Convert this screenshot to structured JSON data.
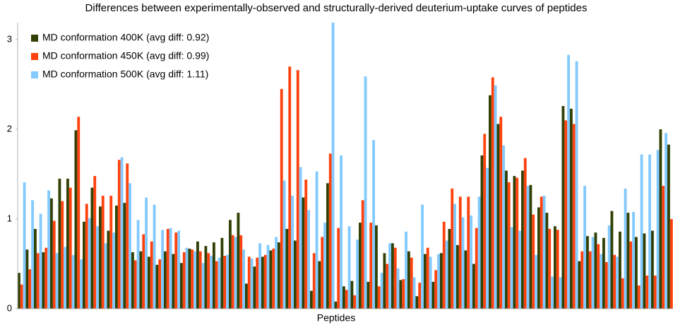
{
  "chart_data": {
    "type": "grouped-bar",
    "title": "Differences between experimentally-observed and structurally-derived deuterium-uptake curves of peptides",
    "x_label": "Peptides",
    "ylim": [
      0,
      3.19
    ],
    "yticks": [
      0,
      1,
      2,
      3
    ],
    "grid": false,
    "legend": "top-left",
    "series": [
      {
        "name": "MD conformation 400K (avg diff: 0.92)",
        "color": "#314004",
        "values": [
          0.4,
          0.66,
          0.89,
          0.63,
          1.23,
          1.45,
          1.45,
          1.99,
          0.97,
          1.35,
          1.14,
          0.87,
          1.15,
          1.18,
          0.63,
          0.64,
          0.58,
          0.49,
          0.64,
          0.61,
          0.51,
          0.67,
          0.75,
          0.7,
          0.74,
          0.79,
          0.99,
          1.07,
          0.28,
          0.47,
          0.58,
          0.65,
          0.74,
          0.89,
          0.76,
          1.24,
          0.2,
          0.53,
          1.4,
          0.08,
          0.25,
          0.31,
          0.96,
          0.3,
          0.93,
          0.62,
          0.73,
          0.32,
          0.64,
          0.14,
          0.61,
          0.3,
          0.62,
          0.89,
          0.71,
          0.65,
          0.5,
          1.71,
          2.38,
          2.06,
          1.54,
          1.48,
          1.54,
          1.38,
          1.13,
          1.07,
          0.92,
          2.26,
          2.23,
          0.53,
          0.81,
          0.85,
          0.79,
          1.09,
          0.86,
          1.07,
          0.8,
          0.84,
          0.87,
          2.0,
          1.83
        ]
      },
      {
        "name": "MD conformation 450K (avg diff: 0.99)",
        "color": "#ff420e",
        "values": [
          0.27,
          0.44,
          0.62,
          0.68,
          0.98,
          1.2,
          1.35,
          2.14,
          1.17,
          1.48,
          1.26,
          1.26,
          1.66,
          1.62,
          0.54,
          0.83,
          0.75,
          0.55,
          0.89,
          0.85,
          0.63,
          0.66,
          0.64,
          0.62,
          0.53,
          0.59,
          0.82,
          0.82,
          0.58,
          0.57,
          0.6,
          0.67,
          2.45,
          2.7,
          2.66,
          1.44,
          0.62,
          0.8,
          1.73,
          0.9,
          0.21,
          0.15,
          1.21,
          0.96,
          0.25,
          0.5,
          0.68,
          0.33,
          0.57,
          0.29,
          0.68,
          0.43,
          0.97,
          1.34,
          1.25,
          1.25,
          0.9,
          1.95,
          2.58,
          2.14,
          1.41,
          1.46,
          1.68,
          1.05,
          1.25,
          0.89,
          0.88,
          2.1,
          2.06,
          0.64,
          0.64,
          0.72,
          0.52,
          0.6,
          0.34,
          0.75,
          0.26,
          0.37,
          0.37,
          1.37,
          1.0
        ]
      },
      {
        "name": "MD conformation 500K (avg diff: 1.11)",
        "color": "#83caff",
        "values": [
          1.41,
          1.21,
          1.06,
          1.32,
          0.62,
          0.69,
          0.6,
          0.55,
          1.01,
          0.92,
          0.73,
          0.85,
          1.69,
          1.4,
          0.99,
          1.24,
          1.16,
          0.88,
          0.9,
          0.87,
          0.68,
          0.64,
          0.51,
          0.59,
          0.57,
          0.6,
          0.8,
          0.66,
          0.56,
          0.73,
          0.71,
          0.8,
          1.43,
          1.26,
          1.58,
          1.1,
          1.53,
          0.96,
          3.19,
          1.71,
          0.92,
          0.77,
          2.59,
          1.88,
          0.4,
          0.73,
          0.45,
          0.86,
          0.35,
          1.16,
          0.58,
          0.61,
          0.76,
          1.17,
          1.02,
          1.04,
          1.25,
          1.57,
          2.49,
          1.82,
          0.91,
          0.87,
          1.37,
          0.6,
          1.26,
          0.36,
          0.35,
          2.83,
          2.76,
          1.37,
          0.8,
          0.61,
          0.93,
          0.58,
          1.34,
          1.08,
          1.72,
          1.72,
          1.77,
          1.96,
          null
        ]
      }
    ]
  }
}
